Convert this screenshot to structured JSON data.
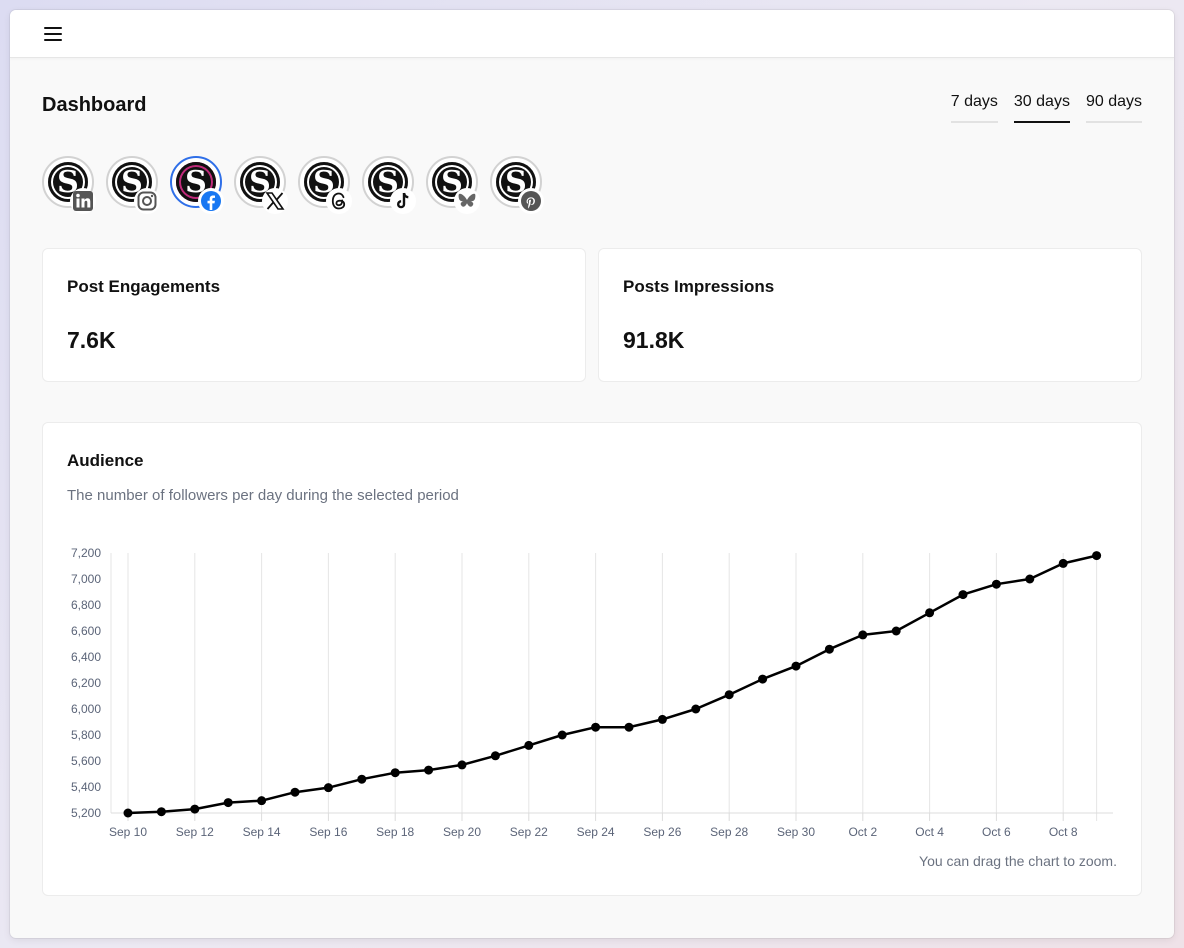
{
  "header": {
    "menu_icon": "hamburger-menu-icon"
  },
  "page": {
    "title": "Dashboard"
  },
  "ranges": [
    {
      "label": "7 days",
      "active": false
    },
    {
      "label": "30 days",
      "active": true
    },
    {
      "label": "90 days",
      "active": false
    }
  ],
  "accounts": [
    {
      "avatar_letter": "S",
      "network": "linkedin",
      "badge_icon": "linkedin-icon",
      "selected": false
    },
    {
      "avatar_letter": "S",
      "network": "instagram",
      "badge_icon": "instagram-icon",
      "selected": false
    },
    {
      "avatar_letter": "S",
      "network": "facebook",
      "badge_icon": "facebook-icon",
      "selected": true
    },
    {
      "avatar_letter": "S",
      "network": "x",
      "badge_icon": "x-icon",
      "selected": false
    },
    {
      "avatar_letter": "S",
      "network": "threads",
      "badge_icon": "threads-icon",
      "selected": false
    },
    {
      "avatar_letter": "S",
      "network": "tiktok",
      "badge_icon": "tiktok-icon",
      "selected": false
    },
    {
      "avatar_letter": "S",
      "network": "bluesky",
      "badge_icon": "bluesky-icon",
      "selected": false
    },
    {
      "avatar_letter": "S",
      "network": "pinterest",
      "badge_icon": "pinterest-icon",
      "selected": false
    }
  ],
  "stats": {
    "engagements": {
      "title": "Post Engagements",
      "value": "7.6K"
    },
    "impressions": {
      "title": "Posts Impressions",
      "value": "91.8K"
    }
  },
  "audience": {
    "title": "Audience",
    "subtitle": "The number of followers per day during the selected period",
    "note": "You can drag the chart to zoom."
  },
  "colors": {
    "accent": "#2f6fe8",
    "line": "#000000",
    "muted_text": "#6b7280"
  },
  "chart_data": {
    "type": "line",
    "x": [
      "Sep 10",
      "Sep 11",
      "Sep 12",
      "Sep 13",
      "Sep 14",
      "Sep 15",
      "Sep 16",
      "Sep 17",
      "Sep 18",
      "Sep 19",
      "Sep 20",
      "Sep 21",
      "Sep 22",
      "Sep 23",
      "Sep 24",
      "Sep 25",
      "Sep 26",
      "Sep 27",
      "Sep 28",
      "Sep 29",
      "Sep 30",
      "Oct 1",
      "Oct 2",
      "Oct 3",
      "Oct 4",
      "Oct 5",
      "Oct 6",
      "Oct 7",
      "Oct 8",
      "Oct 9"
    ],
    "x_tick_labels": [
      "Sep 10",
      "Sep 12",
      "Sep 14",
      "Sep 16",
      "Sep 18",
      "Sep 20",
      "Sep 22",
      "Sep 24",
      "Sep 26",
      "Sep 28",
      "Sep 30",
      "Oct 2",
      "Oct 4",
      "Oct 6",
      "Oct 8"
    ],
    "series": [
      {
        "values": [
          5200,
          5210,
          5230,
          5280,
          5295,
          5360,
          5395,
          5460,
          5510,
          5530,
          5570,
          5640,
          5720,
          5800,
          5860,
          5860,
          5920,
          6000,
          6110,
          6230,
          6330,
          6460,
          6570,
          6600,
          6740,
          6880,
          6960,
          7000,
          7120,
          7180
        ]
      }
    ],
    "y_ticks": [
      5200,
      5400,
      5600,
      5800,
      6000,
      6200,
      6400,
      6600,
      6800,
      7000,
      7200
    ],
    "ylim": [
      5200,
      7200
    ],
    "grid": "vertical",
    "legend": "none"
  }
}
